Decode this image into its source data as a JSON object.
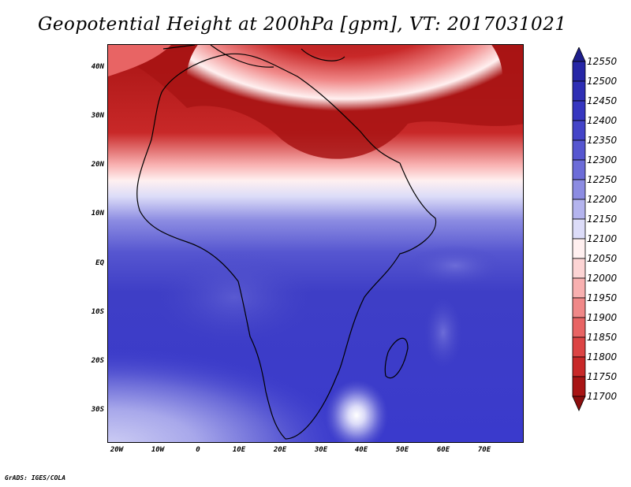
{
  "title": "Geopotential Height at 200hPa [gpm], VT: 2017031021",
  "credit": "GrADS: IGES/COLA",
  "map": {
    "lon_range": [
      -22,
      80
    ],
    "lat_range": [
      -37,
      45
    ],
    "lat_labels": [
      {
        "lat": 40,
        "label": "40N"
      },
      {
        "lat": 30,
        "label": "30N"
      },
      {
        "lat": 20,
        "label": "20N"
      },
      {
        "lat": 10,
        "label": "10N"
      },
      {
        "lat": 0,
        "label": "EQ"
      },
      {
        "lat": -10,
        "label": "10S"
      },
      {
        "lat": -20,
        "label": "20S"
      },
      {
        "lat": -30,
        "label": "30S"
      }
    ],
    "lon_labels": [
      {
        "lon": -20,
        "label": "20W"
      },
      {
        "lon": -10,
        "label": "10W"
      },
      {
        "lon": 0,
        "label": "0"
      },
      {
        "lon": 10,
        "label": "10E"
      },
      {
        "lon": 20,
        "label": "20E"
      },
      {
        "lon": 30,
        "label": "30E"
      },
      {
        "lon": 40,
        "label": "40E"
      },
      {
        "lon": 50,
        "label": "50E"
      },
      {
        "lon": 60,
        "label": "60E"
      },
      {
        "lon": 70,
        "label": "70E"
      }
    ]
  },
  "colorbar": {
    "labels": [
      "12550",
      "12500",
      "12450",
      "12400",
      "12350",
      "12300",
      "12250",
      "12200",
      "12150",
      "12100",
      "12050",
      "12000",
      "11950",
      "11900",
      "11850",
      "11800",
      "11750",
      "11700"
    ],
    "colors_top_to_bottom": [
      "#1e1e8c",
      "#2626a6",
      "#2e2eb4",
      "#3636c0",
      "#4444c8",
      "#5656d0",
      "#6c6cd8",
      "#8c8ce2",
      "#b4b4ee",
      "#dcdcf8",
      "#fff0f0",
      "#fcd4d4",
      "#f8b0b0",
      "#f08888",
      "#e86464",
      "#dc4444",
      "#c82828",
      "#a81414",
      "#8c0e0e"
    ]
  }
}
